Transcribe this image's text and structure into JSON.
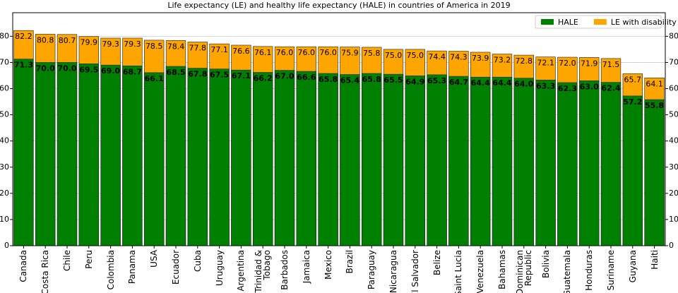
{
  "chart_data": {
    "type": "bar",
    "title": "Life expectancy (LE) and healthy life expectancy (HALE) in countries of America in 2019",
    "categories": [
      "Canada",
      "Costa Rica",
      "Chile",
      "Peru",
      "Colombia",
      "Panama",
      "USA",
      "Ecuador",
      "Cuba",
      "Uruguay",
      "Argentina",
      "Trinidad &\nTobago",
      "Barbados",
      "Jamaica",
      "Mexico",
      "Brazil",
      "Paraguay",
      "Nicaragua",
      "El Salvador",
      "Belize",
      "Saint Lucia",
      "Venezuela",
      "Bahamas",
      "Dominican\nRepublic",
      "Bolivia",
      "Guatemala",
      "Honduras",
      "Suriname",
      "Guyana",
      "Haiti"
    ],
    "series": [
      {
        "name": "LE with disability",
        "color": "#ffa500",
        "values": [
          82.2,
          80.8,
          80.7,
          79.9,
          79.3,
          79.3,
          78.5,
          78.4,
          77.8,
          77.1,
          76.6,
          76.1,
          76,
          76,
          76,
          75.9,
          75.8,
          75,
          75,
          74.4,
          74.3,
          73.9,
          73.2,
          72.8,
          72.1,
          72,
          71.9,
          71.5,
          65.7,
          64.1
        ],
        "value_labels": [
          "82.2",
          "80.8",
          "80.7",
          "79.9",
          "79.3",
          "79.3",
          "78.5",
          "78.4",
          "77.8",
          "77.1",
          "76.6",
          "76.1",
          "76.0",
          "76.0",
          "76.0",
          "75.9",
          "75.8",
          "75.0",
          "75.0",
          "74.4",
          "74.3",
          "73.9",
          "73.2",
          "72.8",
          "72.1",
          "72.0",
          "71.9",
          "71.5",
          "65.7",
          "64.1"
        ]
      },
      {
        "name": "HALE",
        "color": "#008000",
        "values": [
          71.3,
          70,
          70,
          69.5,
          69,
          68.7,
          66.1,
          68.5,
          67.8,
          67.5,
          67.1,
          66.2,
          67,
          66.6,
          65.8,
          65.4,
          65.8,
          65.5,
          64.9,
          65.3,
          64.7,
          64.4,
          64.4,
          64,
          63.3,
          62.3,
          63,
          62.4,
          57.2,
          55.8
        ],
        "value_labels": [
          "71.3",
          "70.0",
          "70.0",
          "69.5",
          "69.0",
          "68.7",
          "66.1",
          "68.5",
          "67.8",
          "67.5",
          "67.1",
          "66.2",
          "67.0",
          "66.6",
          "65.8",
          "65.4",
          "65.8",
          "65.5",
          "64.9",
          "65.3",
          "64.7",
          "64.4",
          "64.4",
          "64.0",
          "63.3",
          "62.3",
          "63.0",
          "62.4",
          "57.2",
          "55.8"
        ]
      }
    ],
    "ylim": [
      0,
      89
    ],
    "yticks": [
      0,
      10,
      20,
      30,
      40,
      50,
      60,
      70,
      80
    ],
    "grid": true,
    "legend": "upper right"
  }
}
